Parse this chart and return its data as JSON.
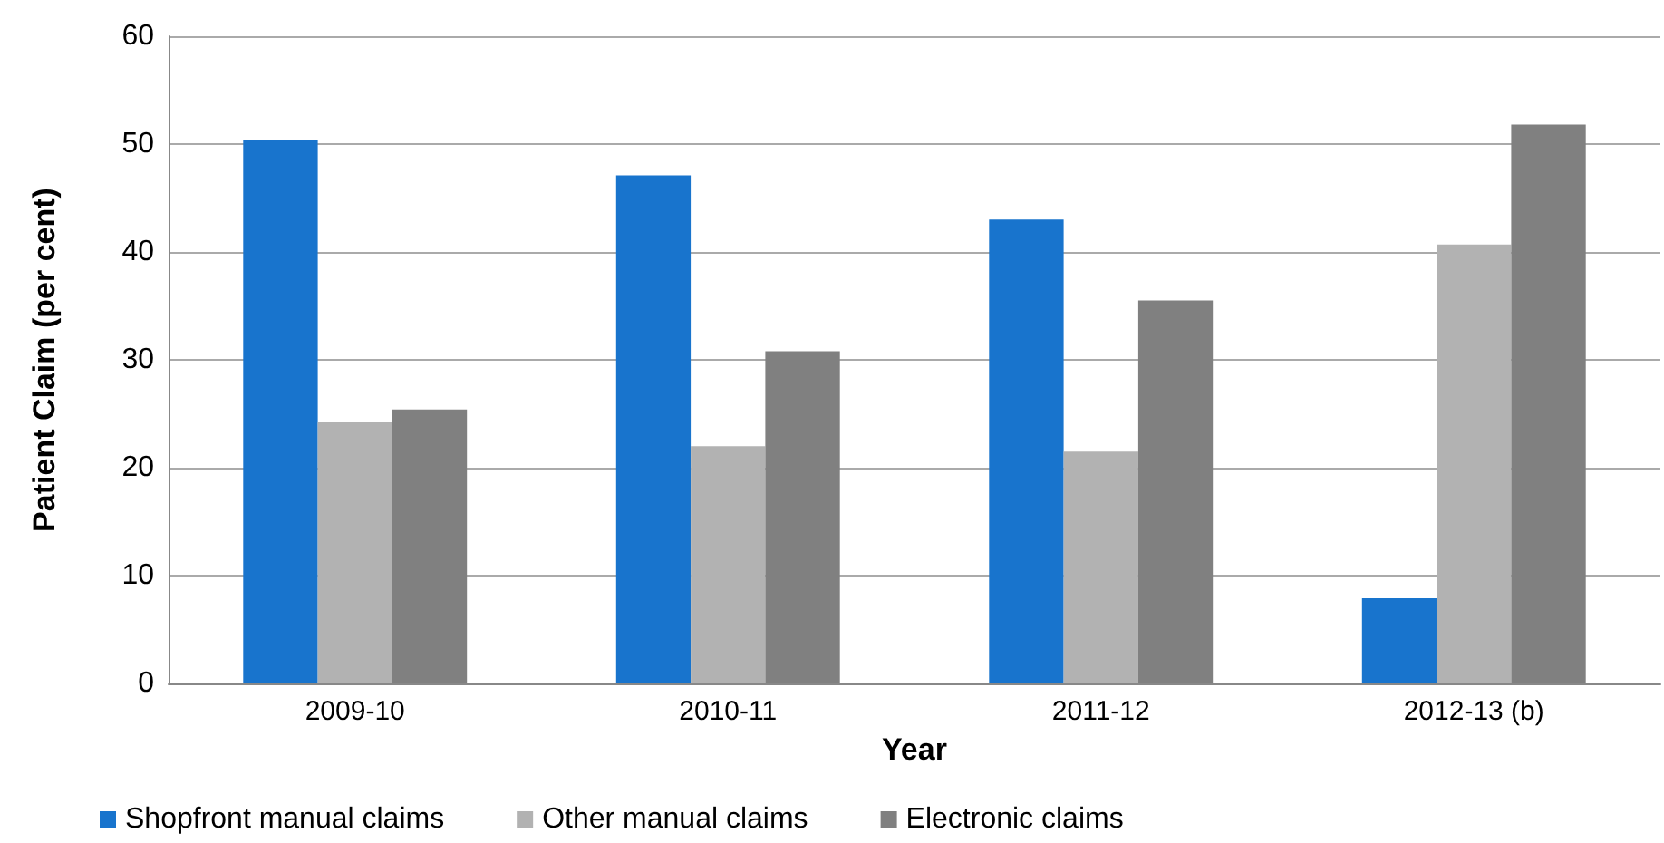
{
  "chart_data": {
    "type": "bar",
    "xlabel": "Year",
    "ylabel": "Patient Claim (per cent)",
    "categories": [
      "2009-10",
      "2010-11",
      "2011-12",
      "2012-13 (b)"
    ],
    "series": [
      {
        "name": "Shopfront manual claims",
        "color": "#1874cd",
        "values": [
          50.4,
          47.1,
          43.0,
          7.9
        ]
      },
      {
        "name": "Other manual claims",
        "color": "#b2b2b2",
        "values": [
          24.2,
          22.0,
          21.5,
          40.7
        ]
      },
      {
        "name": "Electronic claims",
        "color": "#808080",
        "values": [
          25.4,
          30.8,
          35.5,
          51.8
        ]
      }
    ],
    "ylim": [
      0,
      60
    ],
    "yticks": [
      0,
      10,
      20,
      30,
      40,
      50,
      60
    ],
    "grid": "y",
    "legend": "bottom"
  }
}
